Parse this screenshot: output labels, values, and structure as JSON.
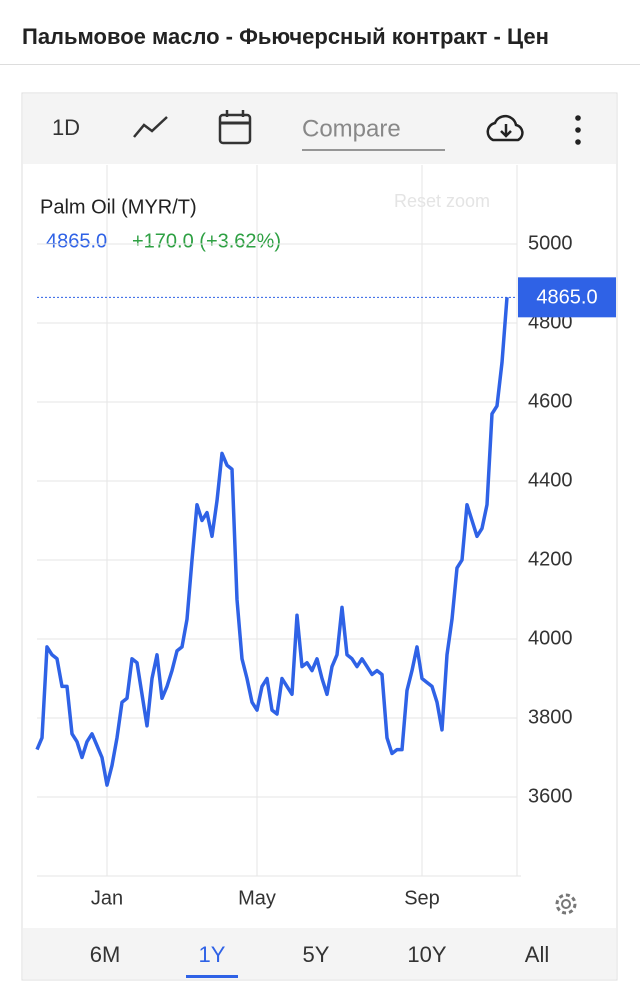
{
  "header": {
    "title": "Пальмовое масло - Фьючерсный контракт - Цен"
  },
  "toolbar": {
    "interval": "1D",
    "compare": "Compare"
  },
  "legend": {
    "name": "Palm Oil (MYR/T)",
    "price": "4865.0",
    "change": "+170.0 (+3.62%)"
  },
  "reset_zoom": "Reset zoom",
  "ranges": [
    "6M",
    "1Y",
    "5Y",
    "10Y",
    "All"
  ],
  "chart_data": {
    "type": "line",
    "categories": [
      null,
      null,
      null,
      null,
      null,
      null,
      null,
      null,
      null,
      null,
      null,
      null,
      null,
      null,
      "Jan",
      null,
      null,
      null,
      null,
      null,
      null,
      null,
      null,
      null,
      null,
      null,
      null,
      null,
      null,
      null,
      null,
      null,
      null,
      null,
      null,
      null,
      null,
      null,
      null,
      null,
      null,
      null,
      null,
      null,
      "May",
      null,
      null,
      null,
      null,
      null,
      null,
      null,
      null,
      null,
      null,
      null,
      null,
      null,
      null,
      null,
      null,
      null,
      null,
      null,
      null,
      null,
      null,
      null,
      null,
      null,
      null,
      null,
      null,
      null,
      null,
      null,
      null,
      "Sep",
      null,
      null,
      null,
      null,
      null,
      null,
      null,
      null,
      null,
      null,
      null,
      null,
      null,
      null,
      null,
      null,
      null
    ],
    "series": [
      {
        "name": "Palm Oil (MYR/T)",
        "color": "#2f62e6",
        "values": [
          3720,
          3750,
          3980,
          3960,
          3950,
          3880,
          3880,
          3760,
          3740,
          3700,
          3740,
          3760,
          3730,
          3700,
          3630,
          3680,
          3750,
          3840,
          3850,
          3950,
          3940,
          3860,
          3780,
          3900,
          3960,
          3850,
          3880,
          3920,
          3970,
          3980,
          4050,
          4200,
          4340,
          4300,
          4320,
          4260,
          4350,
          4470,
          4440,
          4430,
          4100,
          3950,
          3900,
          3840,
          3820,
          3880,
          3900,
          3820,
          3810,
          3900,
          3880,
          3860,
          4060,
          3930,
          3940,
          3920,
          3950,
          3900,
          3860,
          3930,
          3960,
          4080,
          3960,
          3950,
          3930,
          3950,
          3930,
          3910,
          3920,
          3910,
          3750,
          3710,
          3720,
          3720,
          3870,
          3920,
          3980,
          3900,
          3890,
          3880,
          3840,
          3770,
          3960,
          4050,
          4180,
          4200,
          4340,
          4300,
          4260,
          4280,
          4340,
          4570,
          4590,
          4700,
          4865
        ]
      }
    ],
    "ylim": [
      3400,
      5200
    ],
    "yticks": [
      3600,
      3800,
      4000,
      4200,
      4400,
      4600,
      4800,
      5000
    ],
    "grid": true
  }
}
